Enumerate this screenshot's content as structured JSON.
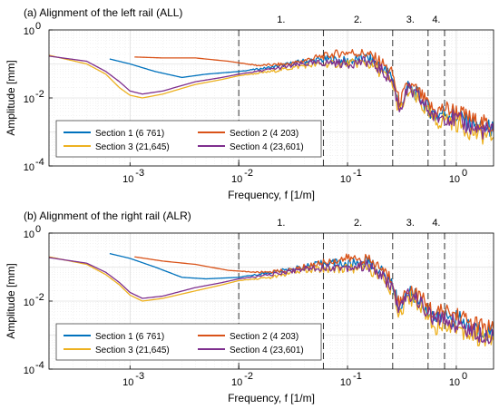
{
  "chart_data": [
    {
      "type": "line",
      "title": "(a) Alignment of the left rail (ALL)",
      "xlabel": "Frequency,  f  [1/m]",
      "ylabel": "Amplitude [mm]",
      "xscale": "log",
      "yscale": "log",
      "xlim": [
        0.00018,
        2.2
      ],
      "ylim": [
        0.0001,
        1
      ],
      "x_ticks": [
        {
          "value": 0.001,
          "label": "10"
        },
        {
          "value": 0.01,
          "label": "10"
        },
        {
          "value": 0.1,
          "label": "10"
        },
        {
          "value": 1,
          "label": "10"
        }
      ],
      "x_tick_exponents": [
        "-3",
        "-2",
        "-1",
        "0"
      ],
      "y_ticks": [
        {
          "value": 1,
          "label": "10"
        },
        {
          "value": 0.01,
          "label": "10"
        },
        {
          "value": 0.0001,
          "label": "10"
        }
      ],
      "y_tick_exponents": [
        "0",
        "-2",
        "-4"
      ],
      "grid": true,
      "legend_location": "lower-left",
      "regions": [
        {
          "x": 0.06,
          "label": "1."
        },
        {
          "x": 0.26,
          "label": "2."
        },
        {
          "x": 0.55,
          "label": "3."
        },
        {
          "x": 0.78,
          "label": "4."
        }
      ],
      "series": [
        {
          "name": "Section 1 (6 761)",
          "color": "#0072BD",
          "points": [
            [
              0.00065,
              0.14
            ],
            [
              0.001,
              0.1
            ],
            [
              0.0017,
              0.06
            ],
            [
              0.003,
              0.04
            ],
            [
              0.005,
              0.05
            ],
            [
              0.01,
              0.06
            ],
            [
              0.02,
              0.08
            ],
            [
              0.04,
              0.12
            ],
            [
              0.07,
              0.14
            ],
            [
              0.1,
              0.12
            ],
            [
              0.15,
              0.15
            ],
            [
              0.2,
              0.09
            ],
            [
              0.26,
              0.04
            ],
            [
              0.3,
              0.005
            ],
            [
              0.36,
              0.02
            ],
            [
              0.45,
              0.012
            ],
            [
              0.55,
              0.005
            ],
            [
              0.65,
              0.003
            ],
            [
              0.78,
              0.004
            ],
            [
              1.0,
              0.003
            ],
            [
              1.5,
              0.0015
            ],
            [
              2.2,
              0.0012
            ]
          ]
        },
        {
          "name": "Section 2 (4 203)",
          "color": "#D95319",
          "points": [
            [
              0.0011,
              0.16
            ],
            [
              0.002,
              0.15
            ],
            [
              0.004,
              0.15
            ],
            [
              0.008,
              0.12
            ],
            [
              0.015,
              0.09
            ],
            [
              0.03,
              0.1
            ],
            [
              0.05,
              0.15
            ],
            [
              0.08,
              0.2
            ],
            [
              0.1,
              0.22
            ],
            [
              0.15,
              0.2
            ],
            [
              0.2,
              0.12
            ],
            [
              0.26,
              0.05
            ],
            [
              0.3,
              0.007
            ],
            [
              0.36,
              0.025
            ],
            [
              0.45,
              0.015
            ],
            [
              0.55,
              0.006
            ],
            [
              0.65,
              0.004
            ],
            [
              0.78,
              0.005
            ],
            [
              1.0,
              0.004
            ],
            [
              1.5,
              0.002
            ],
            [
              2.2,
              0.0015
            ]
          ]
        },
        {
          "name": "Section 3 (21,645)",
          "color": "#EDB120",
          "points": [
            [
              0.00018,
              0.18
            ],
            [
              0.0004,
              0.1
            ],
            [
              0.0006,
              0.05
            ],
            [
              0.0008,
              0.02
            ],
            [
              0.001,
              0.012
            ],
            [
              0.0013,
              0.01
            ],
            [
              0.002,
              0.013
            ],
            [
              0.004,
              0.025
            ],
            [
              0.007,
              0.035
            ],
            [
              0.01,
              0.045
            ],
            [
              0.02,
              0.06
            ],
            [
              0.04,
              0.09
            ],
            [
              0.07,
              0.1
            ],
            [
              0.1,
              0.1
            ],
            [
              0.15,
              0.11
            ],
            [
              0.2,
              0.06
            ],
            [
              0.26,
              0.025
            ],
            [
              0.3,
              0.0035
            ],
            [
              0.36,
              0.015
            ],
            [
              0.45,
              0.008
            ],
            [
              0.55,
              0.0035
            ],
            [
              0.65,
              0.0018
            ],
            [
              0.78,
              0.0025
            ],
            [
              1.0,
              0.0018
            ],
            [
              1.5,
              0.0009
            ],
            [
              2.2,
              0.0007
            ]
          ]
        },
        {
          "name": "Section 4 (23,601)",
          "color": "#7E2F8E",
          "points": [
            [
              0.00018,
              0.17
            ],
            [
              0.0004,
              0.12
            ],
            [
              0.0006,
              0.06
            ],
            [
              0.0008,
              0.03
            ],
            [
              0.001,
              0.016
            ],
            [
              0.0013,
              0.013
            ],
            [
              0.002,
              0.016
            ],
            [
              0.004,
              0.03
            ],
            [
              0.007,
              0.04
            ],
            [
              0.01,
              0.05
            ],
            [
              0.02,
              0.07
            ],
            [
              0.04,
              0.1
            ],
            [
              0.07,
              0.11
            ],
            [
              0.1,
              0.1
            ],
            [
              0.15,
              0.12
            ],
            [
              0.2,
              0.07
            ],
            [
              0.26,
              0.03
            ],
            [
              0.3,
              0.0045
            ],
            [
              0.36,
              0.018
            ],
            [
              0.45,
              0.01
            ],
            [
              0.55,
              0.0045
            ],
            [
              0.65,
              0.0025
            ],
            [
              0.78,
              0.003
            ],
            [
              1.0,
              0.0022
            ],
            [
              1.5,
              0.0012
            ],
            [
              2.2,
              0.001
            ]
          ]
        }
      ]
    },
    {
      "type": "line",
      "title": "(b) Alignment of the right rail (ALR)",
      "xlabel": "Frequency,  f  [1/m]",
      "ylabel": "Amplitude [mm]",
      "xscale": "log",
      "yscale": "log",
      "xlim": [
        0.00018,
        2.2
      ],
      "ylim": [
        0.0001,
        1
      ],
      "x_ticks": [
        {
          "value": 0.001,
          "label": "10"
        },
        {
          "value": 0.01,
          "label": "10"
        },
        {
          "value": 0.1,
          "label": "10"
        },
        {
          "value": 1,
          "label": "10"
        }
      ],
      "x_tick_exponents": [
        "-3",
        "-2",
        "-1",
        "0"
      ],
      "y_ticks": [
        {
          "value": 1,
          "label": "10"
        },
        {
          "value": 0.01,
          "label": "10"
        },
        {
          "value": 0.0001,
          "label": "10"
        }
      ],
      "y_tick_exponents": [
        "0",
        "-2",
        "-4"
      ],
      "grid": true,
      "legend_location": "lower-left",
      "regions": [
        {
          "x": 0.06,
          "label": "1."
        },
        {
          "x": 0.26,
          "label": "2."
        },
        {
          "x": 0.55,
          "label": "3."
        },
        {
          "x": 0.78,
          "label": "4."
        }
      ],
      "series": [
        {
          "name": "Section 1 (6 761)",
          "color": "#0072BD",
          "points": [
            [
              0.00065,
              0.25
            ],
            [
              0.001,
              0.18
            ],
            [
              0.0017,
              0.1
            ],
            [
              0.003,
              0.05
            ],
            [
              0.005,
              0.045
            ],
            [
              0.01,
              0.05
            ],
            [
              0.02,
              0.07
            ],
            [
              0.04,
              0.1
            ],
            [
              0.07,
              0.14
            ],
            [
              0.1,
              0.12
            ],
            [
              0.15,
              0.15
            ],
            [
              0.2,
              0.08
            ],
            [
              0.26,
              0.03
            ],
            [
              0.3,
              0.006
            ],
            [
              0.36,
              0.02
            ],
            [
              0.45,
              0.012
            ],
            [
              0.55,
              0.005
            ],
            [
              0.65,
              0.003
            ],
            [
              0.78,
              0.004
            ],
            [
              1.0,
              0.003
            ],
            [
              1.5,
              0.0015
            ],
            [
              2.2,
              0.0012
            ]
          ]
        },
        {
          "name": "Section 2 (4 203)",
          "color": "#D95319",
          "points": [
            [
              0.0011,
              0.2
            ],
            [
              0.002,
              0.15
            ],
            [
              0.004,
              0.12
            ],
            [
              0.008,
              0.08
            ],
            [
              0.015,
              0.07
            ],
            [
              0.03,
              0.08
            ],
            [
              0.05,
              0.12
            ],
            [
              0.08,
              0.16
            ],
            [
              0.1,
              0.18
            ],
            [
              0.15,
              0.17
            ],
            [
              0.2,
              0.1
            ],
            [
              0.26,
              0.04
            ],
            [
              0.3,
              0.008
            ],
            [
              0.36,
              0.025
            ],
            [
              0.45,
              0.015
            ],
            [
              0.55,
              0.007
            ],
            [
              0.65,
              0.004
            ],
            [
              0.78,
              0.005
            ],
            [
              1.0,
              0.004
            ],
            [
              1.5,
              0.002
            ],
            [
              2.2,
              0.0015
            ]
          ]
        },
        {
          "name": "Section 3 (21,645)",
          "color": "#EDB120",
          "points": [
            [
              0.00018,
              0.2
            ],
            [
              0.0004,
              0.12
            ],
            [
              0.0006,
              0.06
            ],
            [
              0.0008,
              0.03
            ],
            [
              0.001,
              0.015
            ],
            [
              0.0013,
              0.01
            ],
            [
              0.002,
              0.012
            ],
            [
              0.004,
              0.02
            ],
            [
              0.007,
              0.03
            ],
            [
              0.01,
              0.04
            ],
            [
              0.02,
              0.05
            ],
            [
              0.04,
              0.08
            ],
            [
              0.07,
              0.09
            ],
            [
              0.1,
              0.09
            ],
            [
              0.15,
              0.1
            ],
            [
              0.2,
              0.05
            ],
            [
              0.26,
              0.02
            ],
            [
              0.3,
              0.004
            ],
            [
              0.36,
              0.014
            ],
            [
              0.45,
              0.008
            ],
            [
              0.55,
              0.0035
            ],
            [
              0.65,
              0.0018
            ],
            [
              0.78,
              0.0025
            ],
            [
              1.0,
              0.0018
            ],
            [
              1.5,
              0.0009
            ],
            [
              2.2,
              0.0007
            ]
          ]
        },
        {
          "name": "Section 4 (23,601)",
          "color": "#7E2F8E",
          "points": [
            [
              0.00018,
              0.19
            ],
            [
              0.0004,
              0.13
            ],
            [
              0.0006,
              0.07
            ],
            [
              0.0008,
              0.035
            ],
            [
              0.001,
              0.018
            ],
            [
              0.0013,
              0.012
            ],
            [
              0.002,
              0.014
            ],
            [
              0.004,
              0.025
            ],
            [
              0.007,
              0.035
            ],
            [
              0.01,
              0.045
            ],
            [
              0.02,
              0.06
            ],
            [
              0.04,
              0.09
            ],
            [
              0.07,
              0.1
            ],
            [
              0.1,
              0.1
            ],
            [
              0.15,
              0.11
            ],
            [
              0.2,
              0.06
            ],
            [
              0.26,
              0.025
            ],
            [
              0.3,
              0.005
            ],
            [
              0.36,
              0.017
            ],
            [
              0.45,
              0.01
            ],
            [
              0.55,
              0.0045
            ],
            [
              0.65,
              0.0025
            ],
            [
              0.78,
              0.003
            ],
            [
              1.0,
              0.0022
            ],
            [
              1.5,
              0.0012
            ],
            [
              2.2,
              0.001
            ]
          ]
        }
      ]
    }
  ]
}
